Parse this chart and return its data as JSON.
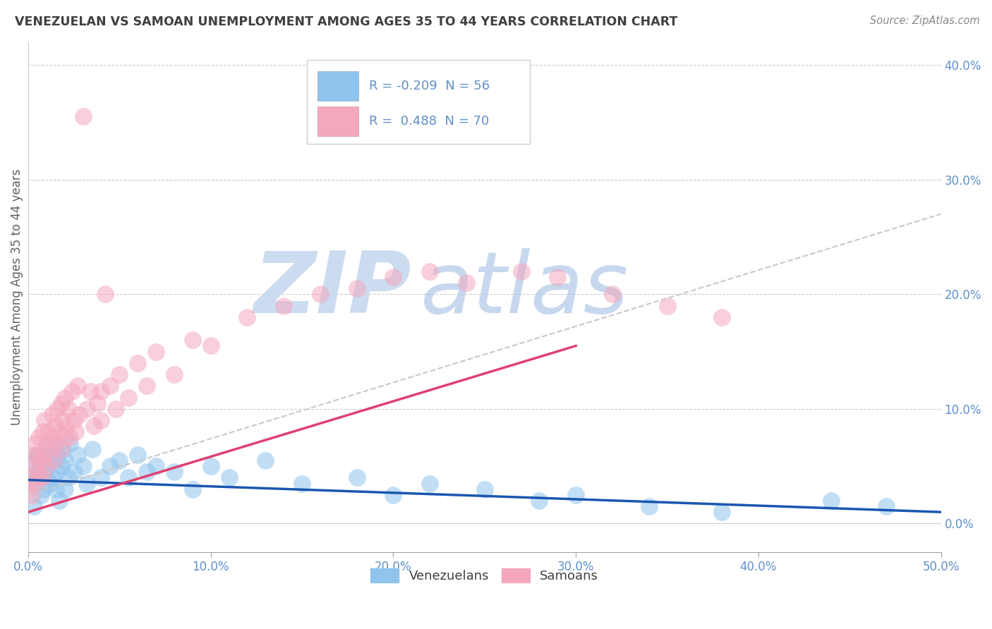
{
  "title": "VENEZUELAN VS SAMOAN UNEMPLOYMENT AMONG AGES 35 TO 44 YEARS CORRELATION CHART",
  "source": "Source: ZipAtlas.com",
  "ylabel": "Unemployment Among Ages 35 to 44 years",
  "xlim": [
    0.0,
    0.5
  ],
  "ylim": [
    -0.025,
    0.42
  ],
  "xticks": [
    0.0,
    0.1,
    0.2,
    0.3,
    0.4,
    0.5
  ],
  "yticks": [
    0.0,
    0.1,
    0.2,
    0.3,
    0.4
  ],
  "ytick_labels_right": [
    "0.0%",
    "10.0%",
    "20.0%",
    "30.0%",
    "40.0%"
  ],
  "xtick_labels": [
    "0.0%",
    "10.0%",
    "20.0%",
    "30.0%",
    "40.0%",
    "50.0%"
  ],
  "legend_r_venezuelan": "-0.209",
  "legend_n_venezuelan": "56",
  "legend_r_samoan": "0.488",
  "legend_n_samoan": "70",
  "venezuelan_color": "#8ec4ee",
  "samoan_color": "#f4a8be",
  "venezuelan_line_color": "#1a56b0",
  "samoan_line_color": "#e04070",
  "gray_line_color": "#c8c8c8",
  "background_color": "#ffffff",
  "grid_color": "#cccccc",
  "title_color": "#404040",
  "axis_color": "#6090c8",
  "watermark_zip": "ZIP",
  "watermark_atlas": "atlas",
  "watermark_color": "#ccdcf0",
  "venezuelan_x": [
    0.0,
    0.002,
    0.003,
    0.003,
    0.005,
    0.005,
    0.006,
    0.007,
    0.007,
    0.008,
    0.009,
    0.01,
    0.01,
    0.012,
    0.012,
    0.013,
    0.014,
    0.015,
    0.015,
    0.016,
    0.016,
    0.017,
    0.018,
    0.019,
    0.02,
    0.02,
    0.022,
    0.023,
    0.025,
    0.027,
    0.03,
    0.032,
    0.035,
    0.04,
    0.045,
    0.05,
    0.055,
    0.06,
    0.065,
    0.07,
    0.08,
    0.09,
    0.1,
    0.11,
    0.13,
    0.15,
    0.18,
    0.2,
    0.22,
    0.25,
    0.28,
    0.3,
    0.34,
    0.38,
    0.44,
    0.47
  ],
  "venezuelan_y": [
    0.035,
    0.04,
    0.015,
    0.055,
    0.04,
    0.06,
    0.045,
    0.025,
    0.05,
    0.03,
    0.045,
    0.05,
    0.065,
    0.035,
    0.06,
    0.04,
    0.055,
    0.03,
    0.07,
    0.045,
    0.06,
    0.02,
    0.05,
    0.065,
    0.03,
    0.055,
    0.04,
    0.07,
    0.045,
    0.06,
    0.05,
    0.035,
    0.065,
    0.04,
    0.05,
    0.055,
    0.04,
    0.06,
    0.045,
    0.05,
    0.045,
    0.03,
    0.05,
    0.04,
    0.055,
    0.035,
    0.04,
    0.025,
    0.035,
    0.03,
    0.02,
    0.025,
    0.015,
    0.01,
    0.02,
    0.015
  ],
  "samoan_x": [
    0.0,
    0.001,
    0.002,
    0.003,
    0.003,
    0.004,
    0.004,
    0.005,
    0.005,
    0.006,
    0.006,
    0.007,
    0.008,
    0.008,
    0.009,
    0.009,
    0.01,
    0.01,
    0.011,
    0.012,
    0.013,
    0.013,
    0.014,
    0.015,
    0.015,
    0.016,
    0.017,
    0.018,
    0.018,
    0.019,
    0.02,
    0.02,
    0.021,
    0.022,
    0.023,
    0.024,
    0.025,
    0.026,
    0.027,
    0.028,
    0.03,
    0.032,
    0.034,
    0.036,
    0.038,
    0.04,
    0.04,
    0.042,
    0.045,
    0.048,
    0.05,
    0.055,
    0.06,
    0.065,
    0.07,
    0.08,
    0.09,
    0.1,
    0.12,
    0.14,
    0.16,
    0.18,
    0.2,
    0.22,
    0.24,
    0.27,
    0.29,
    0.32,
    0.35,
    0.38
  ],
  "samoan_y": [
    0.03,
    0.04,
    0.025,
    0.05,
    0.06,
    0.035,
    0.07,
    0.045,
    0.06,
    0.04,
    0.075,
    0.055,
    0.04,
    0.08,
    0.06,
    0.09,
    0.07,
    0.05,
    0.08,
    0.065,
    0.075,
    0.095,
    0.055,
    0.085,
    0.07,
    0.1,
    0.08,
    0.065,
    0.105,
    0.09,
    0.075,
    0.11,
    0.085,
    0.1,
    0.075,
    0.115,
    0.09,
    0.08,
    0.12,
    0.095,
    0.355,
    0.1,
    0.115,
    0.085,
    0.105,
    0.115,
    0.09,
    0.2,
    0.12,
    0.1,
    0.13,
    0.11,
    0.14,
    0.12,
    0.15,
    0.13,
    0.16,
    0.155,
    0.18,
    0.19,
    0.2,
    0.205,
    0.215,
    0.22,
    0.21,
    0.22,
    0.215,
    0.2,
    0.19,
    0.18
  ],
  "ven_line_x0": 0.0,
  "ven_line_y0": 0.038,
  "ven_line_x1": 0.5,
  "ven_line_y1": 0.01,
  "sam_line_x0": 0.0,
  "sam_line_y0": 0.01,
  "sam_line_x1": 0.3,
  "sam_line_y1": 0.155,
  "gray_line_x0": 0.0,
  "gray_line_y0": 0.025,
  "gray_line_x1": 0.5,
  "gray_line_y1": 0.27
}
